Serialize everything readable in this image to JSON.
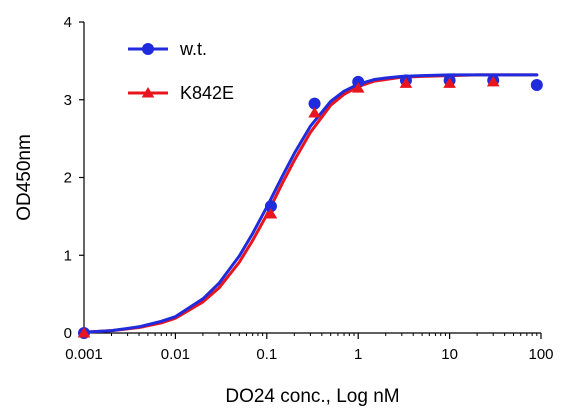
{
  "chart_data": {
    "type": "scatter",
    "xlabel": "DO24 conc., Log nM",
    "ylabel": "OD450nm",
    "x_scale": "log",
    "xlim": [
      0.001,
      100
    ],
    "ylim": [
      0,
      4
    ],
    "x_ticks": [
      0.001,
      0.01,
      0.1,
      1,
      10,
      100
    ],
    "x_tick_labels": [
      "0.001",
      "0.01",
      "0.1",
      "1",
      "10",
      "100"
    ],
    "y_ticks": [
      0,
      1,
      2,
      3,
      4
    ],
    "y_tick_labels": [
      "0",
      "1",
      "2",
      "3",
      "4"
    ],
    "grid": false,
    "legend_position": "top-left",
    "series": [
      {
        "name": "w.t.",
        "color": "#1f2bdc",
        "marker": "circle",
        "x": [
          0.001,
          0.111,
          0.333,
          1,
          3.33,
          10,
          30,
          90
        ],
        "y": [
          0.0,
          1.63,
          2.95,
          3.23,
          3.25,
          3.25,
          3.25,
          3.19
        ],
        "curve_x": [
          0.001,
          0.002,
          0.004,
          0.007,
          0.01,
          0.02,
          0.03,
          0.05,
          0.07,
          0.1,
          0.15,
          0.2,
          0.3,
          0.5,
          0.7,
          1,
          1.5,
          2,
          3,
          5,
          10,
          20,
          50,
          90
        ],
        "curve_y": [
          0.01,
          0.03,
          0.08,
          0.15,
          0.21,
          0.44,
          0.64,
          0.99,
          1.28,
          1.62,
          2.03,
          2.31,
          2.66,
          2.98,
          3.11,
          3.2,
          3.26,
          3.28,
          3.3,
          3.31,
          3.32,
          3.32,
          3.32,
          3.32
        ]
      },
      {
        "name": "K842E",
        "color": "#e8141e",
        "marker": "triangle",
        "x": [
          0.001,
          0.111,
          0.333,
          1,
          3.33,
          10,
          30
        ],
        "y": [
          0.0,
          1.53,
          2.83,
          3.15,
          3.21,
          3.21,
          3.23
        ],
        "curve_x": [
          0.001,
          0.002,
          0.004,
          0.007,
          0.01,
          0.02,
          0.03,
          0.05,
          0.07,
          0.1,
          0.15,
          0.2,
          0.3,
          0.5,
          0.7,
          1,
          1.5,
          2,
          3,
          5,
          10,
          20,
          50,
          90
        ],
        "curve_y": [
          0.01,
          0.03,
          0.07,
          0.13,
          0.19,
          0.4,
          0.58,
          0.91,
          1.19,
          1.52,
          1.94,
          2.22,
          2.58,
          2.93,
          3.07,
          3.17,
          3.24,
          3.26,
          3.29,
          3.3,
          3.31,
          3.32,
          3.32,
          3.32
        ]
      }
    ]
  }
}
